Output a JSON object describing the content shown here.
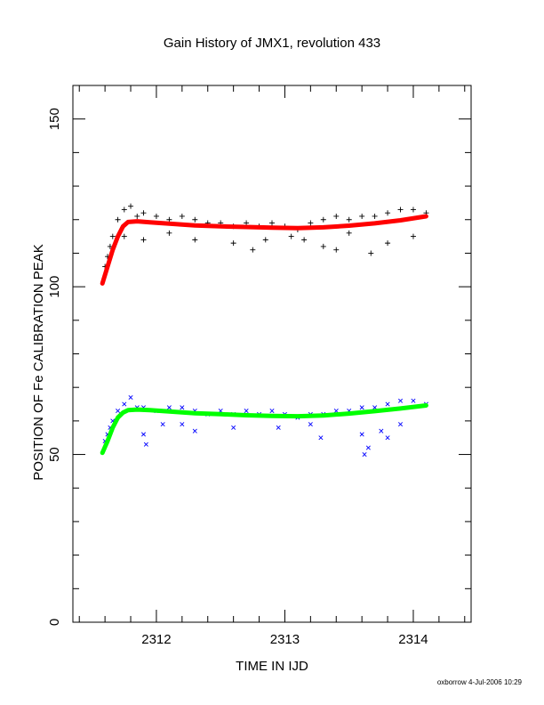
{
  "chart_data": {
    "type": "scatter",
    "title": "Gain History of JMX1, revolution 433",
    "xlabel": "TIME IN IJD",
    "ylabel": "POSITION OF Fe CALIBRATION PEAK",
    "xlim": [
      2311.35,
      2314.45
    ],
    "ylim": [
      0,
      160
    ],
    "xticks": [
      2312,
      2313,
      2314
    ],
    "xtick_labels": [
      "2312",
      "2313",
      "2314"
    ],
    "yticks": [
      0,
      50,
      100,
      150
    ],
    "ytick_labels": [
      "0",
      "50",
      "100",
      "150"
    ],
    "grid": false,
    "colors": {
      "upper_points": "#000000",
      "upper_fit": "#ff0000",
      "lower_points": "#0000ff",
      "lower_fit": "#00ff00"
    },
    "series": [
      {
        "marker": "plus",
        "x": [
          2311.6,
          2311.62,
          2311.64,
          2311.66,
          2311.7,
          2311.75,
          2311.8,
          2311.85,
          2311.9,
          2312.0,
          2312.1,
          2312.2,
          2312.3,
          2312.4,
          2312.5,
          2312.6,
          2312.7,
          2312.8,
          2312.9,
          2313.0,
          2313.1,
          2313.2,
          2313.3,
          2313.4,
          2313.5,
          2313.6,
          2313.7,
          2313.8,
          2313.9,
          2314.0,
          2314.1
        ],
        "y": [
          106,
          109,
          112,
          115,
          120,
          123,
          124,
          121,
          122,
          121,
          120,
          121,
          120,
          119,
          119,
          118,
          119,
          118,
          119,
          118,
          117,
          119,
          120,
          121,
          120,
          121,
          121,
          122,
          123,
          123,
          122
        ],
        "lower_excursions": [
          {
            "x": 2311.75,
            "y": 115
          },
          {
            "x": 2311.9,
            "y": 114
          },
          {
            "x": 2312.1,
            "y": 116
          },
          {
            "x": 2312.3,
            "y": 114
          },
          {
            "x": 2312.6,
            "y": 113
          },
          {
            "x": 2312.75,
            "y": 111
          },
          {
            "x": 2312.85,
            "y": 114
          },
          {
            "x": 2313.05,
            "y": 115
          },
          {
            "x": 2313.15,
            "y": 114
          },
          {
            "x": 2313.3,
            "y": 112
          },
          {
            "x": 2313.4,
            "y": 111
          },
          {
            "x": 2313.5,
            "y": 116
          },
          {
            "x": 2313.67,
            "y": 110
          },
          {
            "x": 2313.8,
            "y": 113
          },
          {
            "x": 2314.0,
            "y": 115
          }
        ]
      },
      {
        "marker": "line",
        "x": [
          2311.58,
          2311.62,
          2311.66,
          2311.7,
          2311.74,
          2311.78,
          2311.85,
          2311.95,
          2312.1,
          2312.3,
          2312.5,
          2312.7,
          2312.9,
          2313.1,
          2313.3,
          2313.5,
          2313.7,
          2313.9,
          2314.1
        ],
        "y": [
          101,
          106,
          111,
          115,
          118,
          119.3,
          119.5,
          119.2,
          118.8,
          118.3,
          118.0,
          117.8,
          117.6,
          117.5,
          117.7,
          118.2,
          118.9,
          119.8,
          121.0
        ]
      },
      {
        "marker": "cross",
        "x": [
          2311.6,
          2311.62,
          2311.64,
          2311.66,
          2311.7,
          2311.75,
          2311.8,
          2311.85,
          2311.9,
          2312.0,
          2312.1,
          2312.2,
          2312.3,
          2312.4,
          2312.5,
          2312.6,
          2312.7,
          2312.8,
          2312.9,
          2313.0,
          2313.1,
          2313.2,
          2313.3,
          2313.4,
          2313.5,
          2313.6,
          2313.7,
          2313.8,
          2313.9,
          2314.0,
          2314.1
        ],
        "y": [
          54,
          56,
          58,
          60,
          63,
          65,
          67,
          64,
          64,
          63,
          64,
          64,
          63,
          62,
          63,
          62,
          63,
          62,
          63,
          62,
          61,
          62,
          62,
          63,
          63,
          64,
          64,
          65,
          66,
          66,
          65
        ],
        "lower_excursions": [
          {
            "x": 2311.9,
            "y": 56
          },
          {
            "x": 2311.92,
            "y": 53
          },
          {
            "x": 2312.05,
            "y": 59
          },
          {
            "x": 2312.2,
            "y": 59
          },
          {
            "x": 2312.3,
            "y": 57
          },
          {
            "x": 2312.6,
            "y": 58
          },
          {
            "x": 2312.95,
            "y": 58
          },
          {
            "x": 2313.2,
            "y": 59
          },
          {
            "x": 2313.28,
            "y": 55
          },
          {
            "x": 2313.6,
            "y": 56
          },
          {
            "x": 2313.62,
            "y": 50
          },
          {
            "x": 2313.65,
            "y": 52
          },
          {
            "x": 2313.75,
            "y": 57
          },
          {
            "x": 2313.8,
            "y": 55
          },
          {
            "x": 2313.9,
            "y": 59
          }
        ]
      },
      {
        "marker": "line",
        "x": [
          2311.58,
          2311.62,
          2311.66,
          2311.7,
          2311.74,
          2311.78,
          2311.85,
          2311.95,
          2312.1,
          2312.3,
          2312.5,
          2312.7,
          2312.9,
          2313.1,
          2313.3,
          2313.5,
          2313.7,
          2313.9,
          2314.1
        ],
        "y": [
          50.5,
          54,
          58,
          61,
          62.5,
          63.2,
          63.4,
          63.2,
          62.8,
          62.3,
          62.0,
          61.7,
          61.5,
          61.4,
          61.6,
          62.2,
          62.9,
          63.7,
          64.6
        ]
      }
    ]
  },
  "footer": {
    "stamp": "oxborrow   4-Jul-2006 10:29"
  }
}
